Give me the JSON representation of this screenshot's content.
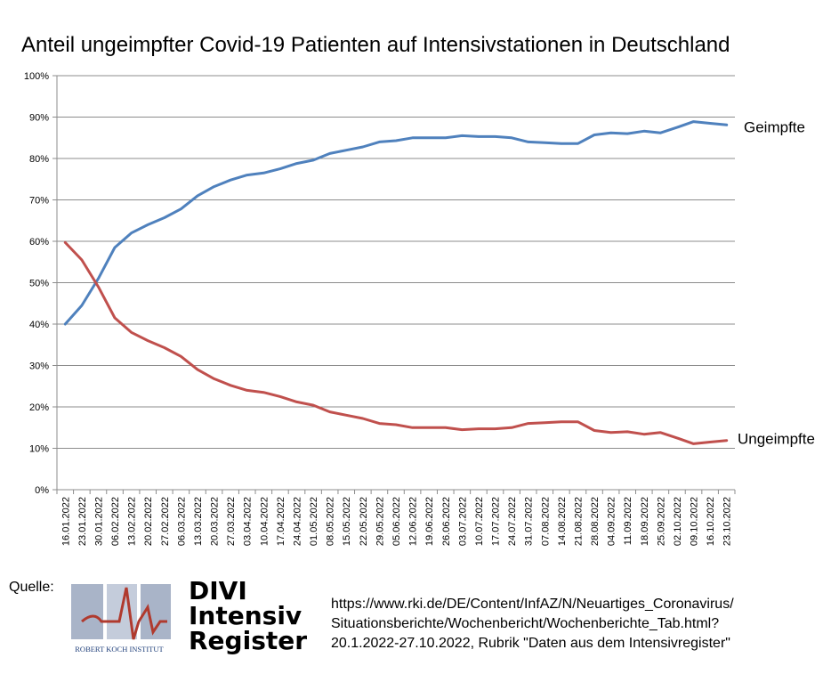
{
  "chart_data": {
    "type": "line",
    "title": "Anteil ungeimpfter Covid-19 Patienten auf Intensivstationen in Deutschland",
    "xlabel": "",
    "ylabel": "",
    "ylim": [
      0,
      100
    ],
    "y_ticks": [
      "0%",
      "10%",
      "20%",
      "30%",
      "40%",
      "50%",
      "60%",
      "70%",
      "80%",
      "90%",
      "100%"
    ],
    "grid": true,
    "categories": [
      "16.01.2022",
      "23.01.2022",
      "30.01.2022",
      "06.02.2022",
      "13.02.2022",
      "20.02.2022",
      "27.02.2022",
      "06.03.2022",
      "13.03.2022",
      "20.03.2022",
      "27.03.2022",
      "03.04.2022",
      "10.04.2022",
      "17.04.2022",
      "24.04.2022",
      "01.05.2022",
      "08.05.2022",
      "15.05.2022",
      "22.05.2022",
      "29.05.2022",
      "05.06.2022",
      "12.06.2022",
      "19.06.2022",
      "26.06.2022",
      "03.07.2022",
      "10.07.2022",
      "17.07.2022",
      "24.07.2022",
      "31.07.2022",
      "07.08.2022",
      "14.08.2022",
      "21.08.2022",
      "28.08.2022",
      "04.09.2022",
      "11.09.2022",
      "18.09.2022",
      "25.09.2022",
      "02.10.2022",
      "09.10.2022",
      "16.10.2022",
      "23.10.2022"
    ],
    "series": [
      {
        "name": "Geimpfte",
        "color": "#4f81bd",
        "values": [
          40,
          44.5,
          51,
          58.5,
          62,
          64,
          65.7,
          67.8,
          71,
          73.2,
          74.8,
          76,
          76.5,
          77.5,
          78.8,
          79.6,
          81.2,
          82,
          82.8,
          84,
          84.3,
          85,
          85,
          85,
          85.5,
          85.3,
          85.3,
          85,
          84,
          83.8,
          83.6,
          83.6,
          85.7,
          86.2,
          86,
          86.6,
          86.2,
          87.5,
          88.9,
          88.5,
          88.1
        ]
      },
      {
        "name": "Ungeimpfte",
        "color": "#c0504d",
        "values": [
          59.7,
          55.5,
          49,
          41.5,
          38,
          36,
          34.3,
          32.2,
          29,
          26.8,
          25.2,
          24,
          23.5,
          22.5,
          21.2,
          20.4,
          18.8,
          18,
          17.2,
          16,
          15.7,
          15,
          15,
          15,
          14.5,
          14.7,
          14.7,
          15,
          16,
          16.2,
          16.4,
          16.4,
          14.3,
          13.8,
          14,
          13.4,
          13.8,
          12.5,
          11.1,
          11.5,
          11.9
        ]
      }
    ]
  },
  "source": {
    "label": "Quelle:",
    "rki_name": "ROBERT KOCH INSTITUT",
    "divi_lines": [
      "DIVI",
      "Intensiv",
      "Register"
    ],
    "text_lines": [
      "https://www.rki.de/DE/Content/InfAZ/N/Neuartiges_Coronavirus/",
      "Situationsberichte/Wochenbericht/Wochenberichte_Tab.html?",
      "20.1.2022-27.10.2022, Rubrik \"Daten aus dem Intensivregister\""
    ]
  }
}
